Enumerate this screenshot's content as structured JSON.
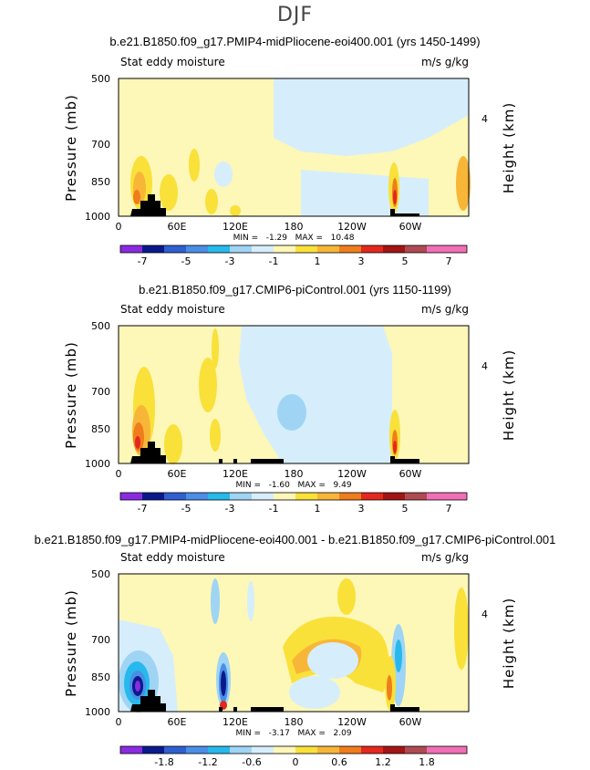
{
  "super_title": "DJF",
  "colors": {
    "deep_purple": "#8a2be2",
    "navy": "#0a1a8c",
    "royal_blue": "#2f5fd0",
    "mid_blue": "#4a8ee6",
    "sky_blue": "#27b9ec",
    "light_blue": "#9fd4f5",
    "pale_blue": "#d6eefb",
    "pale_yellow": "#fdf7b8",
    "yellow": "#f9e13a",
    "light_orange": "#f8b638",
    "orange": "#f07d1c",
    "red": "#e3281e",
    "dark_red": "#a31515",
    "brown": "#b04a52",
    "pink": "#f06fb6",
    "terrain": "#000000"
  },
  "chart_data": [
    {
      "type": "heatmap",
      "title": "b.e21.B1850.f09_g17.PMIP4-midPliocene-eoi400.001 (yrs 1450-1499)",
      "left_label": "Stat eddy moisture",
      "units": "m/s g/kg",
      "ylabel": "Pressure (mb)",
      "ylabel_right": "Height (km)",
      "y_ticks": [
        "500",
        "700",
        "850",
        "1000"
      ],
      "y_right_ticks": [
        "4"
      ],
      "x_ticks": [
        "0",
        "60E",
        "120E",
        "180",
        "120W",
        "60W"
      ],
      "stats": "MIN =   -1.29   MAX =   10.48",
      "colorbar_labels": [
        "-7",
        "-5",
        "-3",
        "-1",
        "1",
        "3",
        "5",
        "7"
      ],
      "min": -1.29,
      "max": 10.48
    },
    {
      "type": "heatmap",
      "title": "b.e21.B1850.f09_g17.CMIP6-piControl.001 (yrs 1150-1199)",
      "left_label": "Stat eddy moisture",
      "units": "m/s g/kg",
      "ylabel": "Pressure (mb)",
      "ylabel_right": "Height (km)",
      "y_ticks": [
        "500",
        "700",
        "850",
        "1000"
      ],
      "y_right_ticks": [
        "4"
      ],
      "x_ticks": [
        "0",
        "60E",
        "120E",
        "180",
        "120W",
        "60W"
      ],
      "stats": "MIN =   -1.60   MAX =   9.49",
      "colorbar_labels": [
        "-7",
        "-5",
        "-3",
        "-1",
        "1",
        "3",
        "5",
        "7"
      ],
      "min": -1.6,
      "max": 9.49
    },
    {
      "type": "heatmap",
      "title": "b.e21.B1850.f09_g17.PMIP4-midPliocene-eoi400.001 - b.e21.B1850.f09_g17.CMIP6-piControl.001",
      "left_label": "Stat eddy moisture",
      "units": "m/s g/kg",
      "ylabel": "Pressure (mb)",
      "ylabel_right": "Height (km)",
      "y_ticks": [
        "500",
        "700",
        "850",
        "1000"
      ],
      "y_right_ticks": [
        "4"
      ],
      "x_ticks": [
        "0",
        "60E",
        "120E",
        "180",
        "120W",
        "60W"
      ],
      "stats": "MIN =   -3.17   MAX =   2.09",
      "colorbar_labels": [
        "-1.8",
        "-1.2",
        "-0.6",
        "0",
        "0.6",
        "1.2",
        "1.8"
      ],
      "min": -3.17,
      "max": 2.09
    }
  ]
}
